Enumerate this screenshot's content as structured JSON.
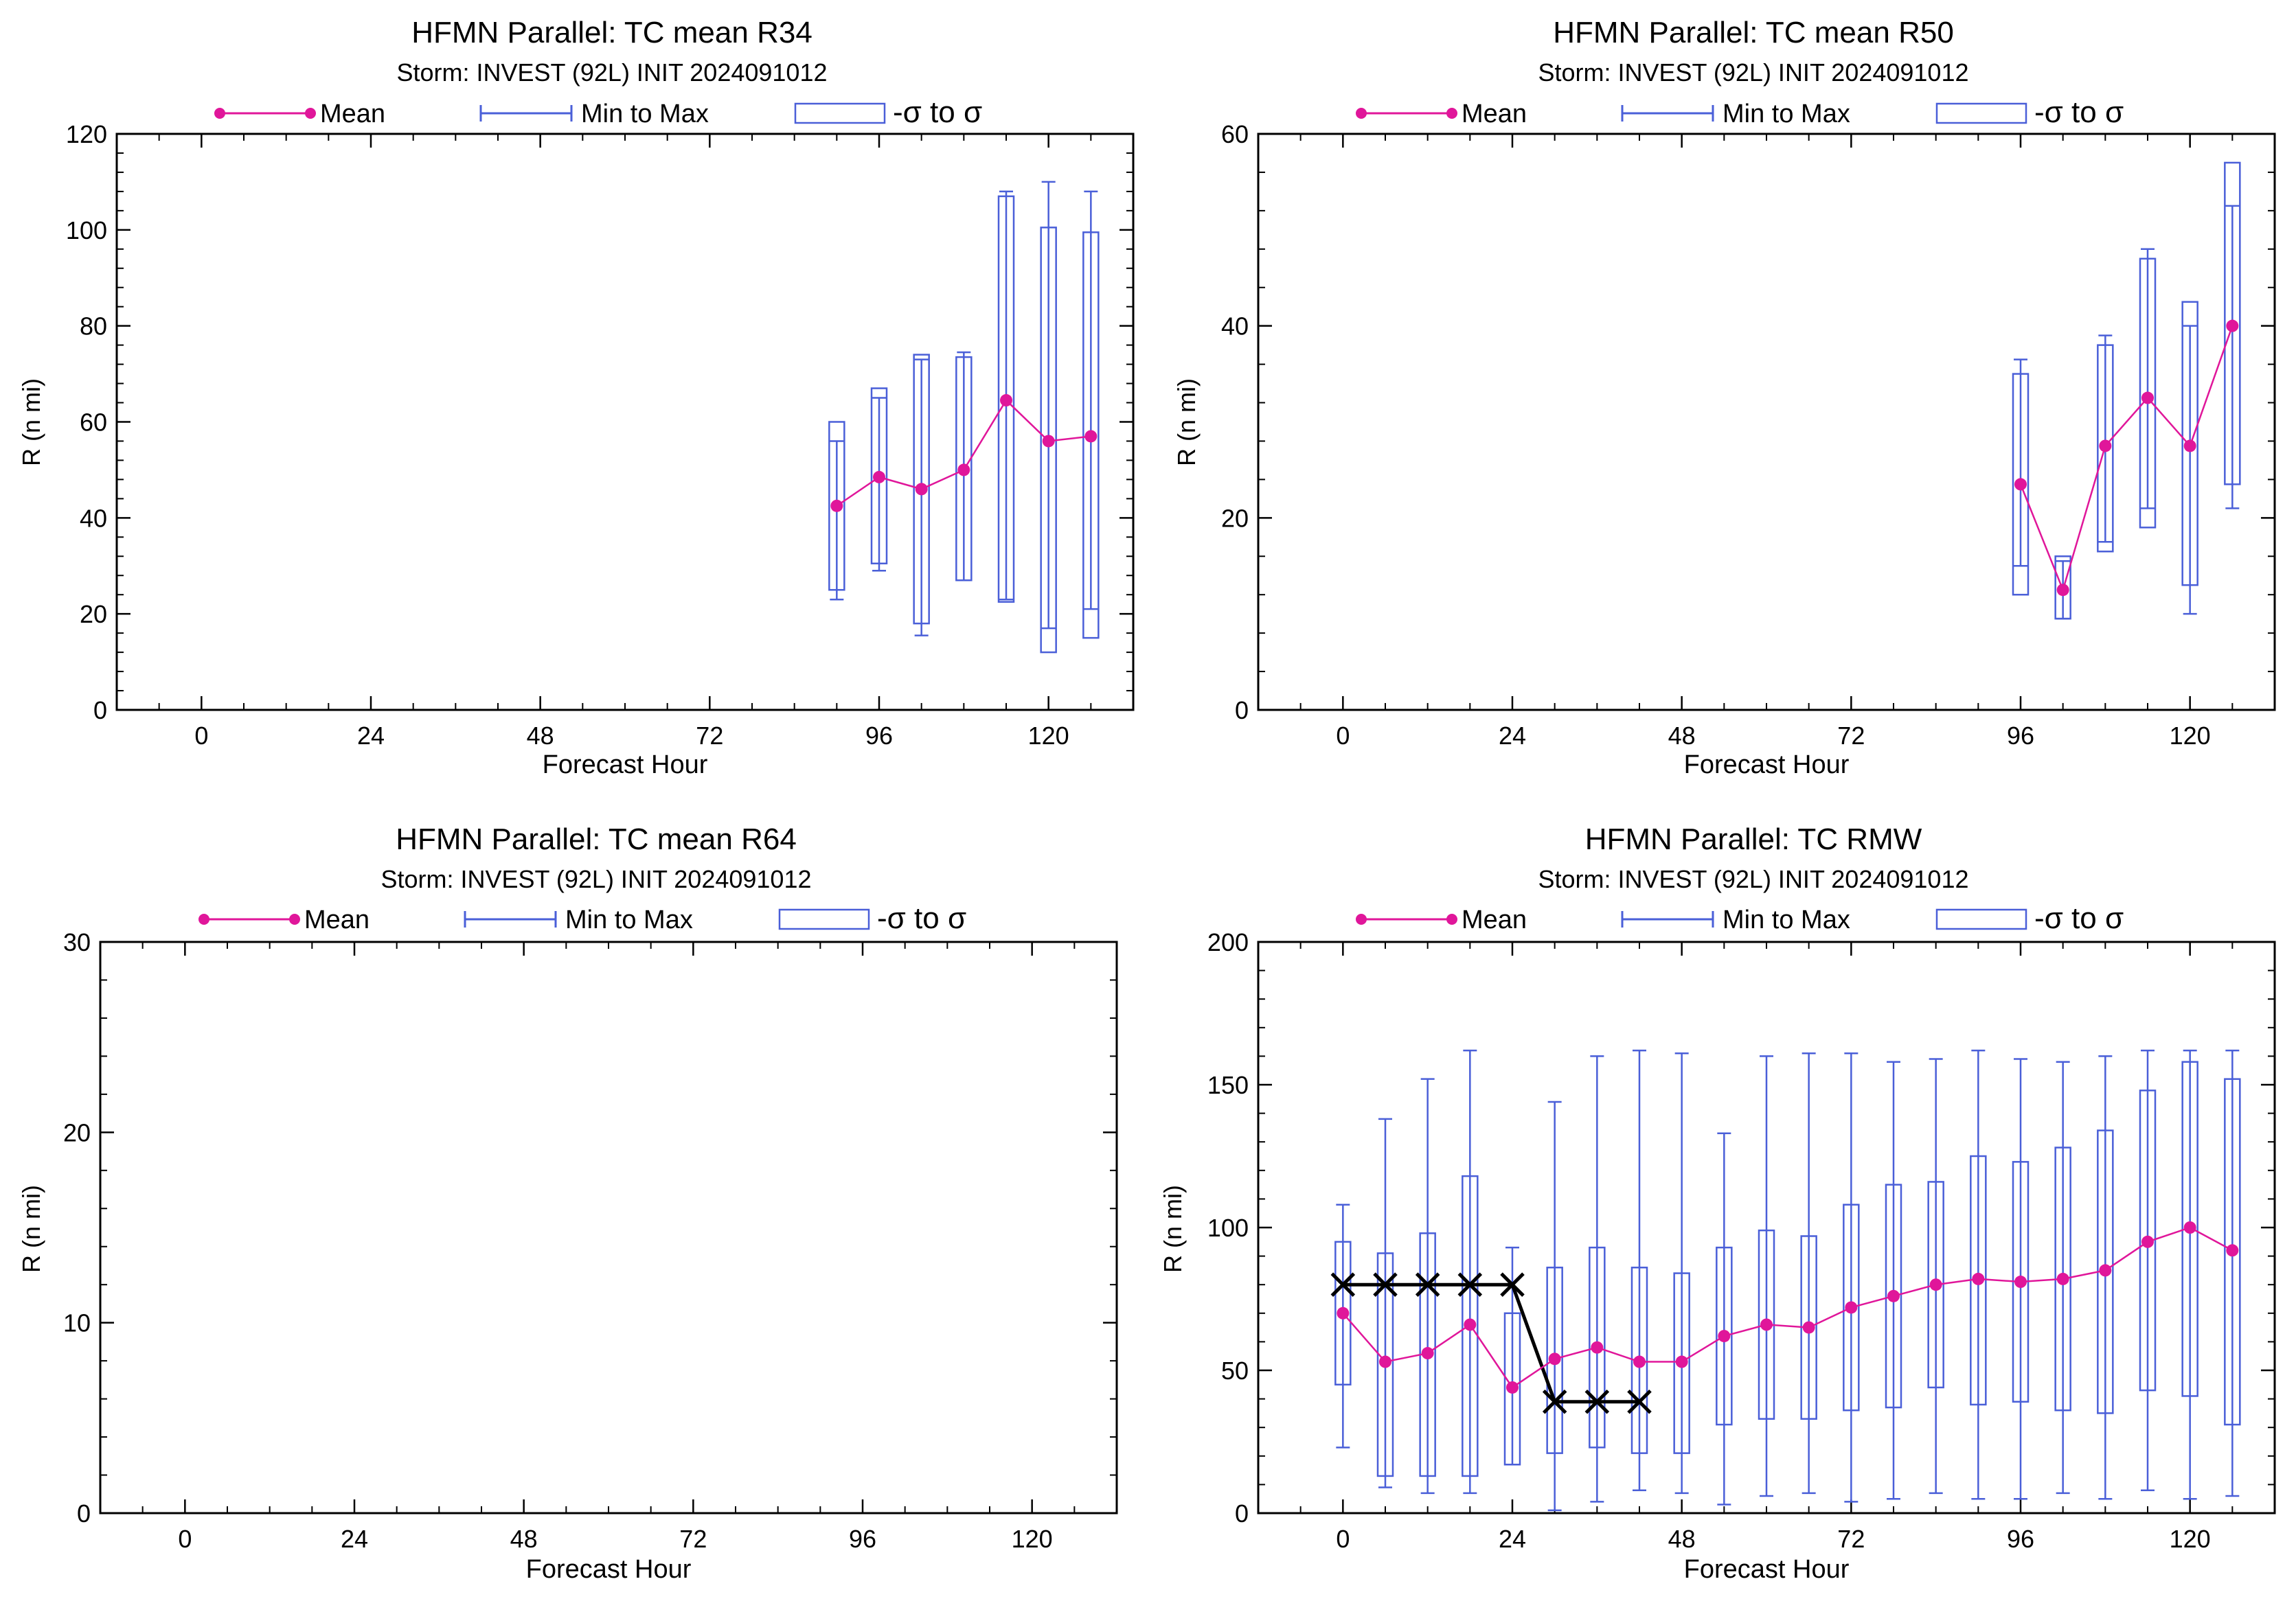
{
  "colors": {
    "mean": "#e0169a",
    "range": "#4a5fd8",
    "observed": "#000000",
    "axis": "#000000"
  },
  "legend": {
    "mean": "Mean",
    "range": "Min to Max",
    "sigma": "-σ to σ"
  },
  "chart_data": [
    {
      "type": "box",
      "title": "HFMN Parallel: TC mean R34",
      "subtitle": "Storm: INVEST (92L) INIT 2024091012",
      "xlabel": "Forecast Hour",
      "ylabel": "R (n mi)",
      "xlim": [
        -12,
        132
      ],
      "ylim": [
        0,
        120
      ],
      "xticks": [
        0,
        24,
        48,
        72,
        96,
        120
      ],
      "yticks": [
        0,
        20,
        40,
        60,
        80,
        100,
        120
      ],
      "x": [
        90,
        96,
        102,
        108,
        114,
        120,
        126
      ],
      "mean": [
        42.5,
        48.5,
        46,
        50,
        64.5,
        56,
        57
      ],
      "min": [
        23,
        29,
        15.5,
        27,
        23,
        17,
        21
      ],
      "max": [
        56,
        65,
        73,
        74.5,
        108,
        110,
        108
      ],
      "sigma_low": [
        25,
        30.5,
        18,
        27,
        22.5,
        12,
        15
      ],
      "sigma_high": [
        60,
        67,
        74,
        73.5,
        107,
        100.5,
        99.5
      ],
      "observed": []
    },
    {
      "type": "box",
      "title": "HFMN Parallel: TC mean R50",
      "subtitle": "Storm: INVEST (92L) INIT 2024091012",
      "xlabel": "Forecast Hour",
      "ylabel": "R (n mi)",
      "xlim": [
        -12,
        132
      ],
      "ylim": [
        0,
        60
      ],
      "xticks": [
        0,
        24,
        48,
        72,
        96,
        120
      ],
      "yticks": [
        0,
        20,
        40,
        60
      ],
      "x": [
        96,
        102,
        108,
        114,
        120,
        126
      ],
      "mean": [
        23.5,
        12.5,
        27.5,
        32.5,
        27.5,
        40
      ],
      "min": [
        15,
        9.5,
        17.5,
        21,
        10,
        21
      ],
      "max": [
        36.5,
        15.5,
        39,
        48,
        40,
        52.5
      ],
      "sigma_low": [
        12,
        9.5,
        16.5,
        19,
        13,
        23.5
      ],
      "sigma_high": [
        35,
        16,
        38,
        47,
        42.5,
        57
      ],
      "observed": []
    },
    {
      "type": "box",
      "title": "HFMN Parallel: TC mean R64",
      "subtitle": "Storm: INVEST (92L) INIT 2024091012",
      "xlabel": "Forecast Hour",
      "ylabel": "R (n mi)",
      "xlim": [
        -12,
        132
      ],
      "ylim": [
        0,
        30
      ],
      "xticks": [
        0,
        24,
        48,
        72,
        96,
        120
      ],
      "yticks": [
        0,
        10,
        20,
        30
      ],
      "x": [],
      "mean": [],
      "min": [],
      "max": [],
      "sigma_low": [],
      "sigma_high": [],
      "observed": []
    },
    {
      "type": "box",
      "title": "HFMN Parallel: TC RMW",
      "subtitle": "Storm: INVEST (92L) INIT 2024091012",
      "xlabel": "Forecast Hour",
      "ylabel": "R (n mi)",
      "xlim": [
        -12,
        132
      ],
      "ylim": [
        0,
        200
      ],
      "xticks": [
        0,
        24,
        48,
        72,
        96,
        120
      ],
      "yticks": [
        0,
        50,
        100,
        150,
        200
      ],
      "x": [
        0,
        6,
        12,
        18,
        24,
        30,
        36,
        42,
        48,
        54,
        60,
        66,
        72,
        78,
        84,
        90,
        96,
        102,
        108,
        114,
        120,
        126
      ],
      "mean": [
        70,
        53,
        56,
        66,
        44,
        54,
        58,
        53,
        53,
        62,
        66,
        65,
        72,
        76,
        80,
        82,
        81,
        82,
        85,
        95,
        100,
        92
      ],
      "min": [
        23,
        9,
        7,
        7,
        17,
        1,
        4,
        8,
        7,
        3,
        6,
        7,
        4,
        5,
        7,
        5,
        5,
        7,
        5,
        8,
        5,
        6
      ],
      "max": [
        108,
        138,
        152,
        162,
        93,
        144,
        160,
        162,
        161,
        133,
        160,
        161,
        161,
        158,
        159,
        162,
        159,
        158,
        160,
        162,
        162,
        162
      ],
      "sigma_low": [
        45,
        13,
        13,
        13,
        17,
        21,
        23,
        21,
        21,
        31,
        33,
        33,
        36,
        37,
        44,
        38,
        39,
        36,
        35,
        43,
        41,
        31
      ],
      "sigma_high": [
        95,
        91,
        98,
        118,
        70,
        86,
        93,
        86,
        84,
        93,
        99,
        97,
        108,
        115,
        116,
        125,
        123,
        128,
        134,
        148,
        158,
        152
      ],
      "observed": [
        {
          "x": 0,
          "y": 80
        },
        {
          "x": 6,
          "y": 80
        },
        {
          "x": 12,
          "y": 80
        },
        {
          "x": 18,
          "y": 80
        },
        {
          "x": 24,
          "y": 80
        },
        {
          "x": 30,
          "y": 39
        },
        {
          "x": 36,
          "y": 39
        },
        {
          "x": 42,
          "y": 39
        }
      ]
    }
  ]
}
